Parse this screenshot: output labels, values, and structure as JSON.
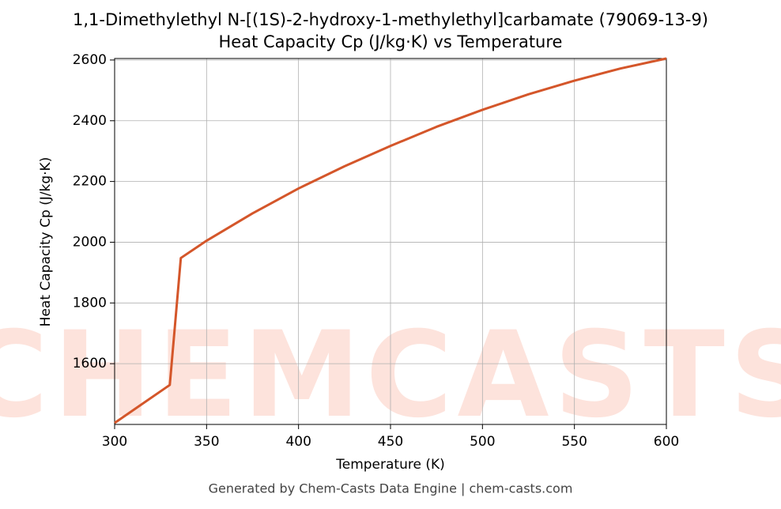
{
  "chart_data": {
    "type": "line",
    "title": "1,1-Dimethylethyl N-[(1S)-2-hydroxy-1-methylethyl]carbamate (79069-13-9)",
    "subtitle": "Heat Capacity Cp (J/kg·K) vs Temperature",
    "xlabel": "Temperature (K)",
    "ylabel": "Heat Capacity Cp (J/kg·K)",
    "footer": "Generated by Chem-Casts Data Engine | chem-casts.com",
    "watermark": "CHEMCASTS",
    "x": [
      300,
      330,
      336,
      350,
      375,
      400,
      425,
      450,
      475,
      500,
      525,
      550,
      575,
      600
    ],
    "series": [
      {
        "name": "Cp",
        "color": "#d4562a",
        "values": [
          1405,
          1530,
          1948,
          2005,
          2095,
          2177,
          2250,
          2317,
          2380,
          2436,
          2487,
          2532,
          2572,
          2605
        ]
      }
    ],
    "xlim": [
      300,
      600
    ],
    "xticks": [
      300,
      350,
      400,
      450,
      500,
      550,
      600
    ],
    "ylim": [
      1400,
      2605
    ],
    "yticks": [
      1600,
      1800,
      2000,
      2200,
      2400,
      2600
    ],
    "grid": true
  }
}
